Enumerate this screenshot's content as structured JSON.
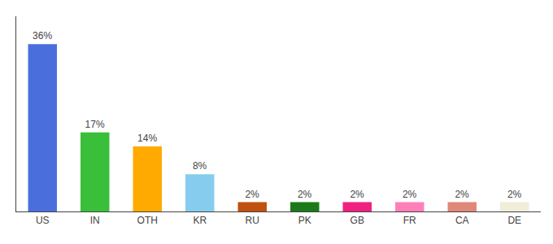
{
  "chart_data": {
    "type": "bar",
    "categories": [
      "US",
      "IN",
      "OTH",
      "KR",
      "RU",
      "PK",
      "GB",
      "FR",
      "CA",
      "DE"
    ],
    "values": [
      36,
      17,
      14,
      8,
      2,
      2,
      2,
      2,
      2,
      2
    ],
    "value_labels": [
      "36%",
      "17%",
      "14%",
      "8%",
      "2%",
      "2%",
      "2%",
      "2%",
      "2%",
      "2%"
    ],
    "colors": [
      "#4a6fdc",
      "#3abf3a",
      "#ffaa00",
      "#85ccee",
      "#c05010",
      "#1a7a1a",
      "#f02080",
      "#ff80b8",
      "#e08878",
      "#f0edd8"
    ],
    "ylim": [
      0,
      42
    ],
    "grid": false,
    "data_labels": true,
    "tick_labels": "x"
  }
}
